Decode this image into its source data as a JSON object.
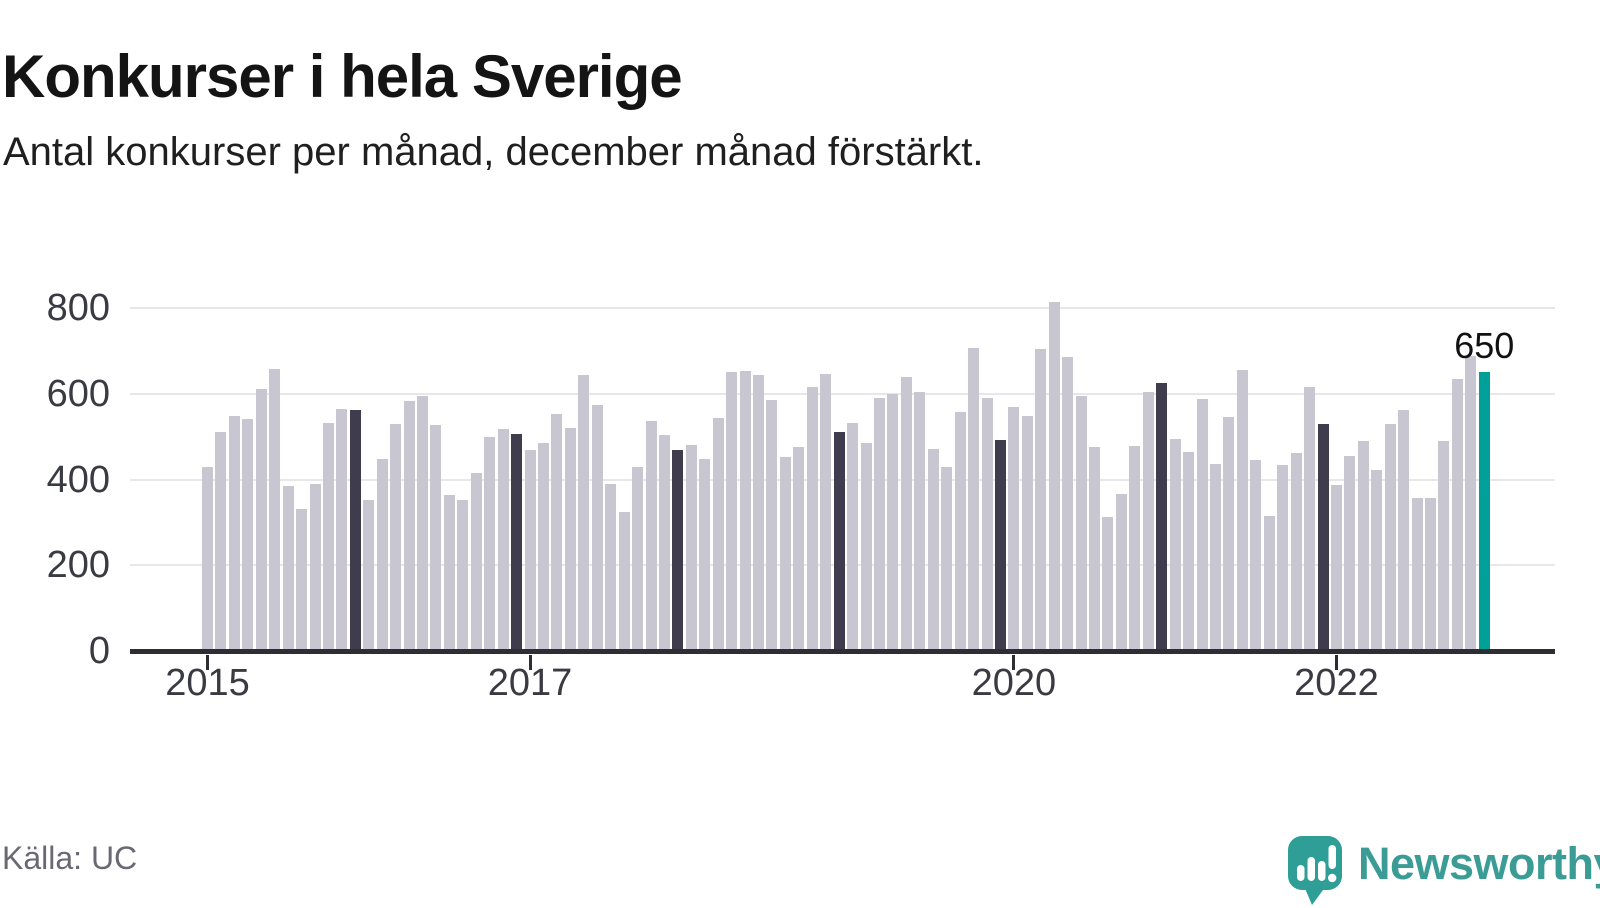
{
  "header": {
    "title": "Konkurser i hela Sverige",
    "subtitle": "Antal konkurser per månad, december månad förstärkt."
  },
  "footer": {
    "source": "Källa: UC",
    "brand": "Newsworthy"
  },
  "chart_data": {
    "type": "bar",
    "title": "Konkurser i hela Sverige",
    "subtitle": "Antal konkurser per månad, december månad förstärkt.",
    "x_start": "2015-01",
    "x_end": "2022-12",
    "x_tick_years": [
      2015,
      2017,
      2020,
      2022
    ],
    "ylim": [
      0,
      800
    ],
    "yticks": [
      0,
      200,
      400,
      600,
      800
    ],
    "grid": true,
    "december_emphasized": true,
    "values": [
      428,
      510,
      548,
      540,
      610,
      658,
      386,
      332,
      390,
      531,
      564,
      562,
      352,
      448,
      530,
      582,
      594,
      528,
      365,
      353,
      415,
      500,
      517,
      507,
      468,
      485,
      553,
      520,
      643,
      574,
      390,
      324,
      429,
      536,
      504,
      468,
      480,
      448,
      544,
      650,
      654,
      644,
      586,
      453,
      475,
      615,
      645,
      510,
      532,
      485,
      590,
      600,
      638,
      605,
      470,
      430,
      558,
      706,
      590,
      492,
      570,
      548,
      705,
      815,
      685,
      595,
      475,
      313,
      366,
      479,
      605,
      625,
      495,
      465,
      588,
      435,
      545,
      655,
      445,
      315,
      433,
      462,
      615,
      530,
      388,
      454,
      489,
      422,
      530,
      563,
      358,
      358,
      490,
      634,
      688,
      650
    ],
    "last_bar": {
      "value": 650,
      "label": "650"
    },
    "colors": {
      "bar": "#c8c6d1",
      "december": "#3f3c4e",
      "latest": "#00a098",
      "grid": "#e7e6ea",
      "axis": "#2d2d33"
    }
  }
}
